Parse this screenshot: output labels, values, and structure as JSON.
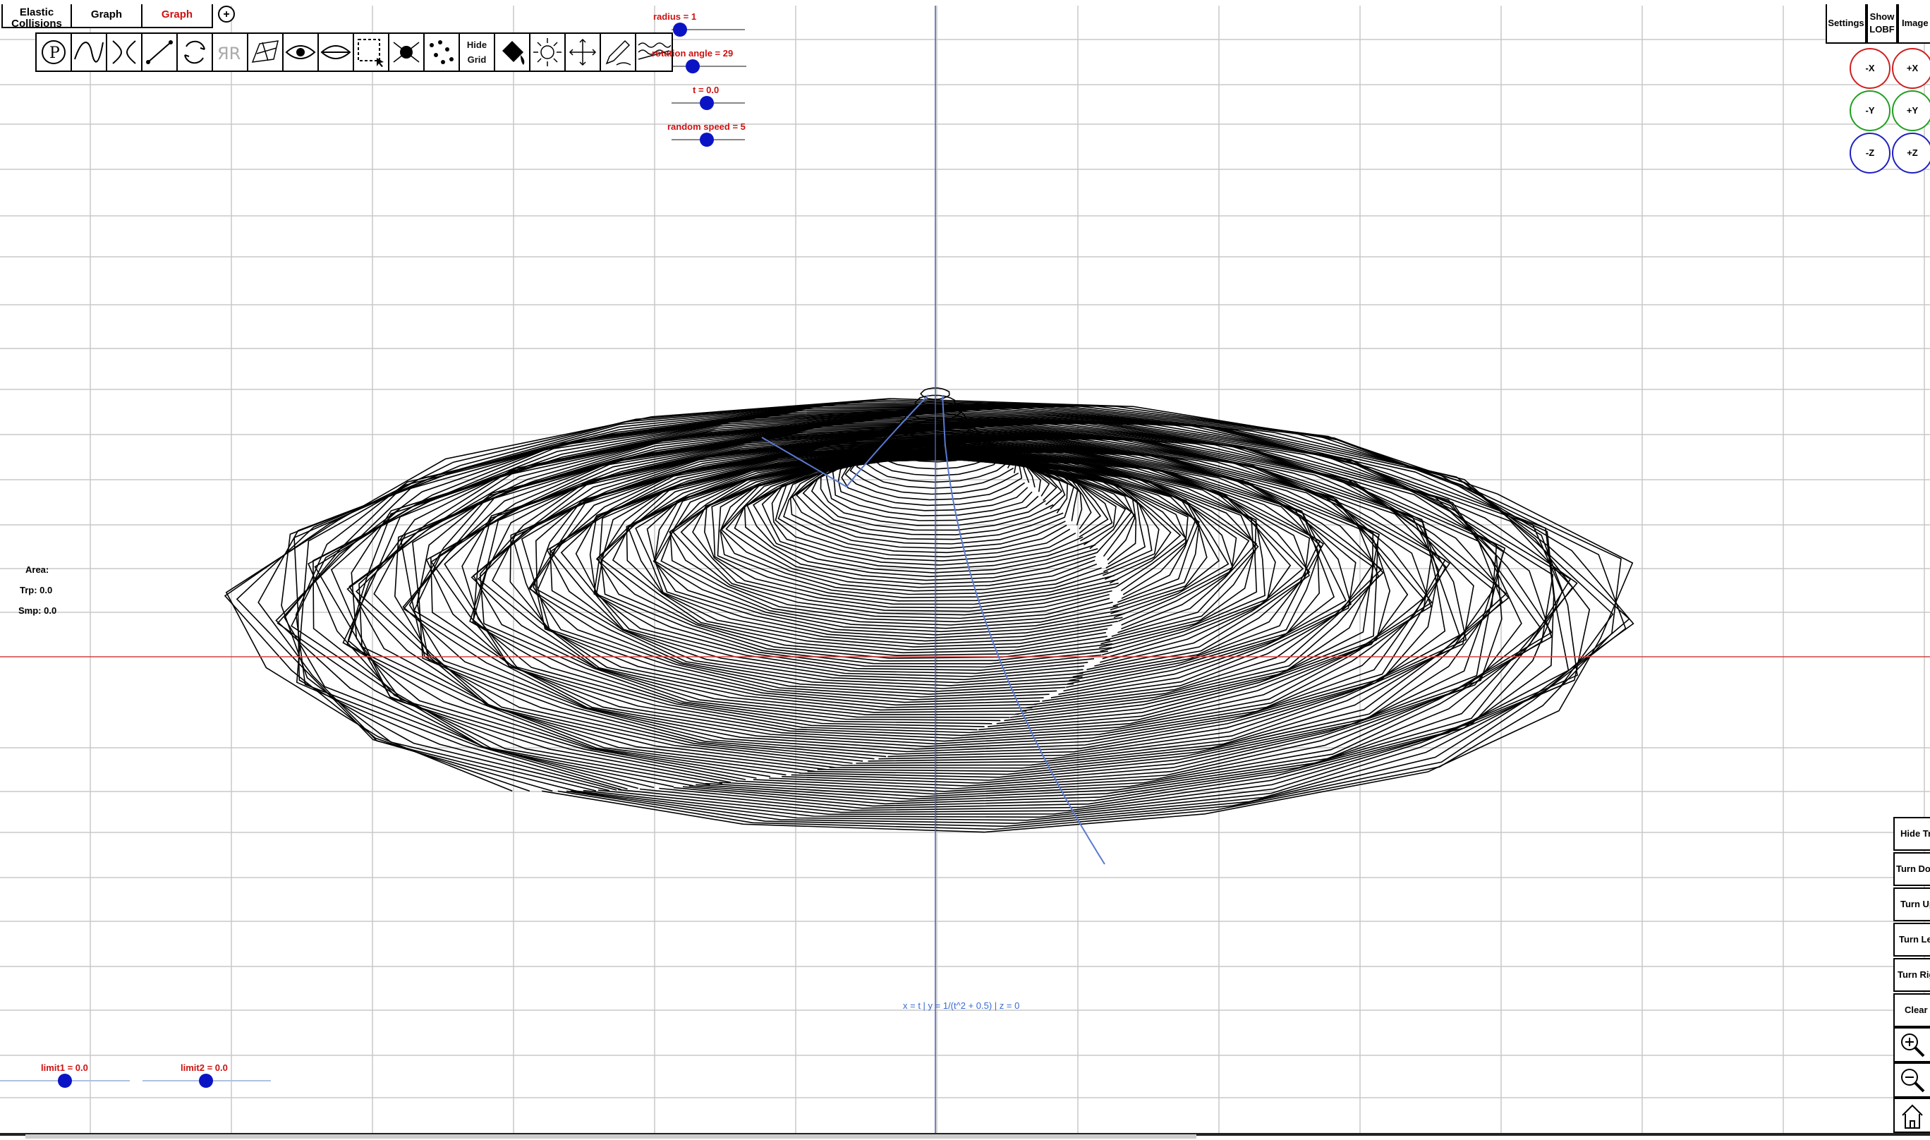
{
  "tabs": [
    {
      "label": "Elastic Collisions",
      "active": false
    },
    {
      "label": "Graph",
      "active": false
    },
    {
      "label": "Graph",
      "active": true
    }
  ],
  "add_tab_label": "+",
  "toolbar": {
    "tools": [
      "parametric-icon",
      "curve-icon",
      "intersection-icon",
      "line-segment-icon",
      "rotate-icon",
      "reflect-icon",
      "surface-icon",
      "eye-open-icon",
      "eye-closed-icon",
      "select-box-icon",
      "point-drop-icon",
      "scatter-icon"
    ],
    "hide_grid_label_line1": "Hide",
    "hide_grid_label_line2": "Grid",
    "tools_after": [
      "paint-bucket-icon",
      "sun-icon",
      "move-icon",
      "pen-icon",
      "wave-icon"
    ]
  },
  "sliders": [
    {
      "label": "radius = 1",
      "value": 1
    },
    {
      "label": "rotation angle = 29",
      "value": 29
    },
    {
      "label": "t = 0.0",
      "value": 0.0
    },
    {
      "label": "random speed = 5",
      "value": 5
    }
  ],
  "top_right": {
    "settings_label": "Settings",
    "show_lobf_label": "Show LOBF",
    "image_label": "Image"
  },
  "axis_buttons": [
    {
      "label": "-X",
      "color": "#d02020"
    },
    {
      "label": "+X",
      "color": "#d02020"
    },
    {
      "label": "-Y",
      "color": "#20a020"
    },
    {
      "label": "+Y",
      "color": "#20a020"
    },
    {
      "label": "-Z",
      "color": "#2020c0"
    },
    {
      "label": "+Z",
      "color": "#2020c0"
    }
  ],
  "side_buttons": {
    "hide_trace": "Hide Trace",
    "turn_down": "Turn Down",
    "turn_up": "Turn Up",
    "turn_left": "Turn Left",
    "turn_right": "Turn Right",
    "clear": "Clear"
  },
  "area": {
    "title": "Area:",
    "trp": "Trp: 0.0",
    "smp": "Smp: 0.0"
  },
  "formula": "x = t | y = 1/(t^2 + 0.5) | z = 0",
  "limits": [
    {
      "label": "limit1 = 0.0",
      "value": 0.0
    },
    {
      "label": "limit2 = 0.0",
      "value": 0.0
    }
  ],
  "colors": {
    "accent_red": "#d01010",
    "slider_knob": "#0b14c4",
    "x_axis": "#d04040",
    "z_axis": "#4a5ab0",
    "curve": "#5a7ad0",
    "grid": "#c8c8c8"
  }
}
